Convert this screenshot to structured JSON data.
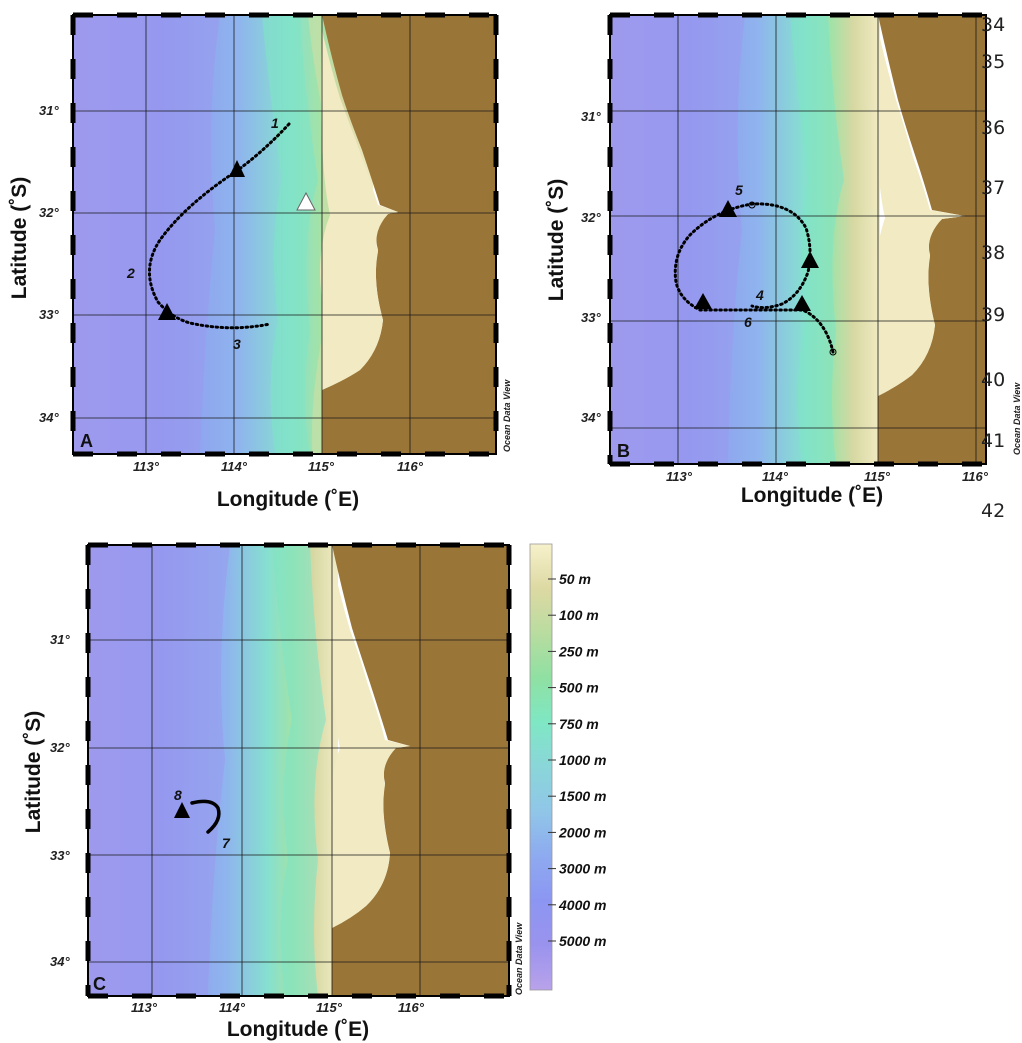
{
  "axis_labels": {
    "latitude": "Latitude (˚S)",
    "longitude": "Longitude (˚E)"
  },
  "watermark": "Ocean Data View",
  "panels": [
    {
      "id": "A",
      "lat_ticks": [
        "31°",
        "32°",
        "33°",
        "34°"
      ],
      "lon_ticks": [
        "113°",
        "114°",
        "115°",
        "116°"
      ],
      "track_labels": [
        "1",
        "2",
        "3"
      ]
    },
    {
      "id": "B",
      "lat_ticks": [
        "31°",
        "32°",
        "33°",
        "34°"
      ],
      "lon_ticks": [
        "113°",
        "114°",
        "115°",
        "116°"
      ],
      "track_labels": [
        "5",
        "4",
        "6"
      ]
    },
    {
      "id": "C",
      "lat_ticks": [
        "31°",
        "32°",
        "33°",
        "34°"
      ],
      "lon_ticks": [
        "113°",
        "114°",
        "115°",
        "116°"
      ],
      "track_labels": [
        "8",
        "7"
      ]
    }
  ],
  "legend": [
    {
      "label": "50 m",
      "color": "#f5efc6"
    },
    {
      "label": "100 m",
      "color": "#ddd9a3"
    },
    {
      "label": "250 m",
      "color": "#b9dca0"
    },
    {
      "label": "500 m",
      "color": "#8fe0a2"
    },
    {
      "label": "750 m",
      "color": "#7fe7c4"
    },
    {
      "label": "1000 m",
      "color": "#8ad6d9"
    },
    {
      "label": "1500 m",
      "color": "#90c6e8"
    },
    {
      "label": "2000 m",
      "color": "#8eaaf0"
    },
    {
      "label": "3000 m",
      "color": "#8c96f2"
    },
    {
      "label": "4000 m",
      "color": "#9a93ee"
    },
    {
      "label": "5000 m",
      "color": "#b39fea"
    }
  ],
  "line_numbers": [
    "34",
    "35",
    "36",
    "37",
    "38",
    "39",
    "40",
    "41",
    "42"
  ],
  "colors": {
    "land": "#9a7538",
    "shelf": "#f3ecc3",
    "deep": "#a9a0ee",
    "mid": "#8ea0f0",
    "slope": "#7fe1c6",
    "frame": "#000000"
  }
}
